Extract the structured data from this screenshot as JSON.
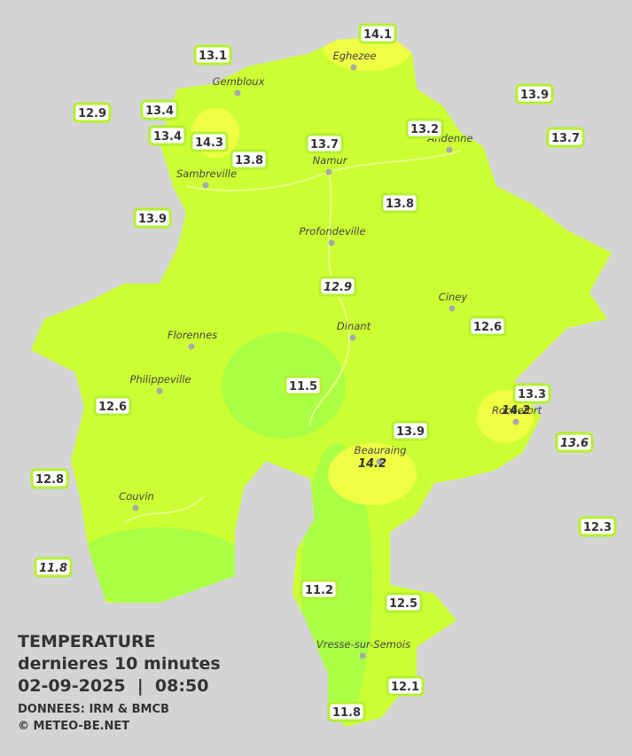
{
  "title": {
    "heading": "TEMPERATURE",
    "subtitle": "dernieres 10 minutes",
    "timestamp": "02-09-2025  |  08:50",
    "source": "DONNEES: IRM & BMCB",
    "credit": "© METEO-BE.NET"
  },
  "cities": [
    "Eghezee",
    "Gembloux",
    "Andenne",
    "Namur",
    "Sambreville",
    "Profondeville",
    "Ciney",
    "Dinant",
    "Florennes",
    "Philippeville",
    "Rochefort",
    "Beauraing",
    "Couvin",
    "Vresse-sur-Semois"
  ],
  "stations": [
    13.1,
    14.1,
    12.9,
    13.4,
    13.4,
    14.3,
    13.8,
    13.7,
    13.2,
    13.9,
    13.7,
    13.9,
    13.8,
    12.9,
    12.6,
    11.5,
    12.6,
    13.3,
    14.2,
    13.9,
    13.6,
    14.2,
    12.8,
    12.3,
    11.8,
    11.2,
    12.5,
    12.1,
    11.8
  ]
}
